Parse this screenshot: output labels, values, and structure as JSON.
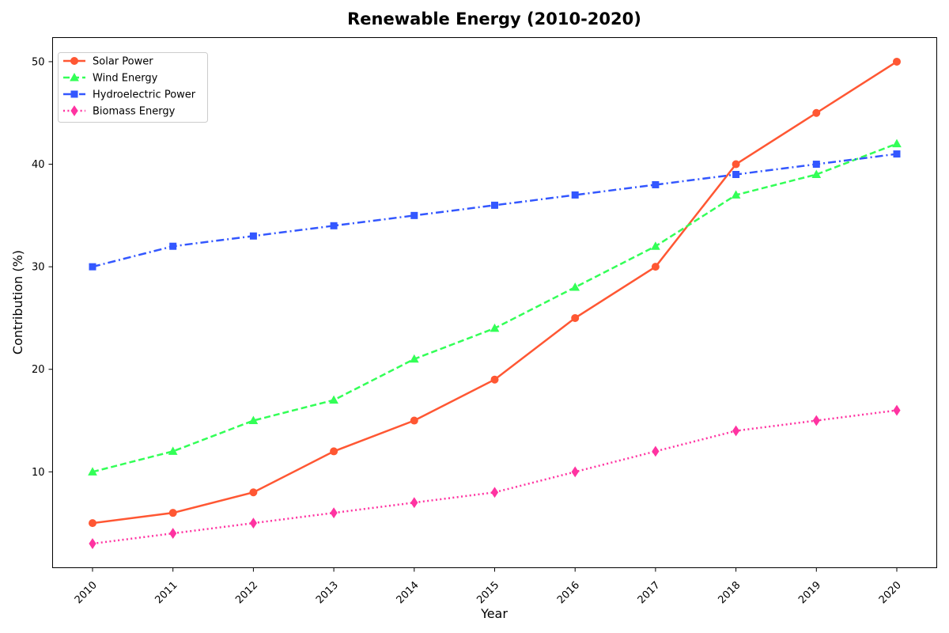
{
  "chart_data": {
    "type": "line",
    "title": "Renewable Energy (2010-2020)",
    "xlabel": "Year",
    "ylabel": "Contribution (%)",
    "x": [
      "2010",
      "2011",
      "2012",
      "2013",
      "2014",
      "2015",
      "2016",
      "2017",
      "2018",
      "2019",
      "2020"
    ],
    "ylim": [
      0.65,
      52.35
    ],
    "yticks": [
      10,
      20,
      30,
      40,
      50
    ],
    "grid": false,
    "legend_position": "top-left",
    "series": [
      {
        "name": "Solar Power",
        "color": "#ff5733",
        "dash": "solid",
        "marker": "circle",
        "values": [
          5,
          6,
          8,
          12,
          15,
          19,
          25,
          30,
          40,
          45,
          50
        ]
      },
      {
        "name": "Wind Energy",
        "color": "#33ff57",
        "dash": "dashed",
        "marker": "triangle",
        "values": [
          10,
          12,
          15,
          17,
          21,
          24,
          28,
          32,
          37,
          39,
          42
        ]
      },
      {
        "name": "Hydroelectric Power",
        "color": "#3357ff",
        "dash": "dashdot",
        "marker": "square",
        "values": [
          30,
          32,
          33,
          34,
          35,
          36,
          37,
          38,
          39,
          40,
          41
        ]
      },
      {
        "name": "Biomass Energy",
        "color": "#ff33a1",
        "dash": "dotted",
        "marker": "diamond",
        "values": [
          3,
          4,
          5,
          6,
          7,
          8,
          10,
          12,
          14,
          15,
          16
        ]
      }
    ]
  }
}
